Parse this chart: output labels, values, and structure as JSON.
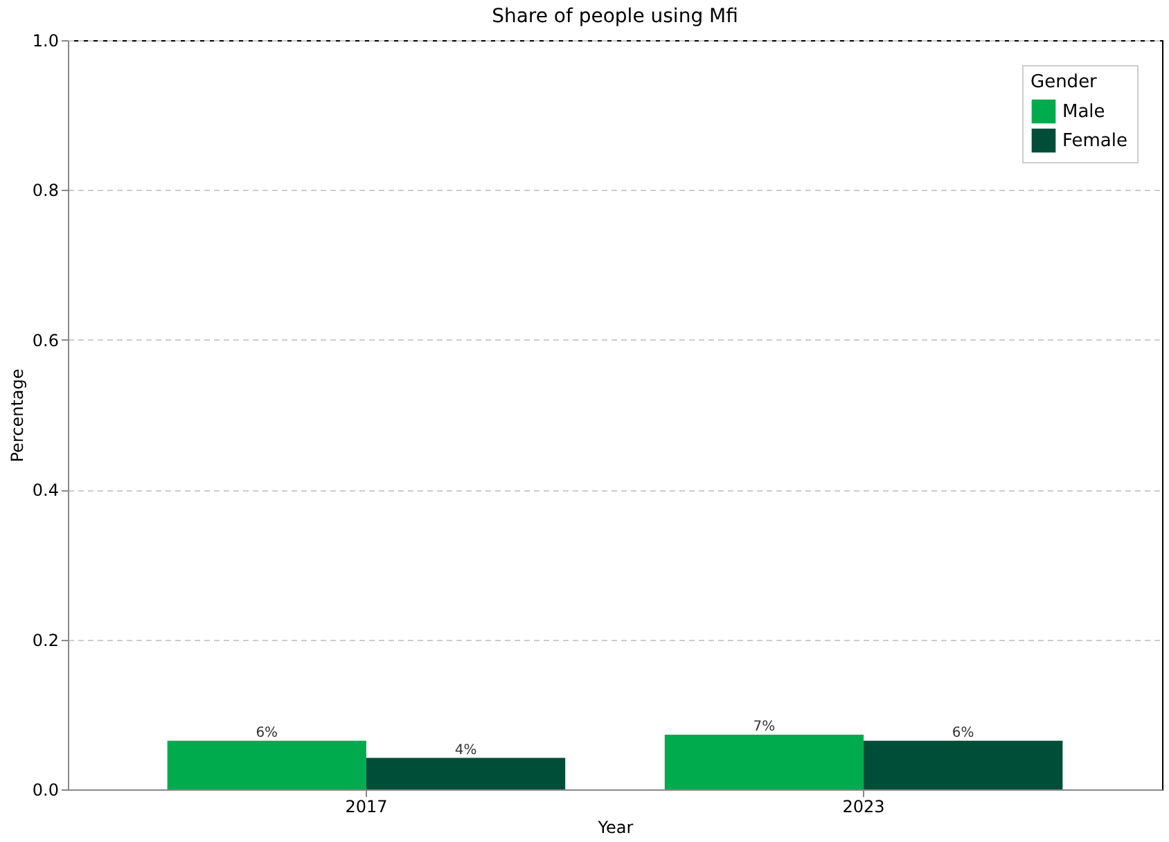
{
  "chart_data": {
    "type": "bar",
    "title": "Share of people using Mfi",
    "xlabel": "Year",
    "ylabel": "Percentage",
    "legend_title": "Gender",
    "categories": [
      "2017",
      "2023"
    ],
    "series": [
      {
        "name": "Male",
        "color": "#00ab4e",
        "values": [
          0.065,
          0.073
        ],
        "value_labels": [
          "6%",
          "7%"
        ]
      },
      {
        "name": "Female",
        "color": "#004d38",
        "values": [
          0.042,
          0.065
        ],
        "value_labels": [
          "4%",
          "6%"
        ]
      }
    ],
    "ylim": [
      0,
      1
    ],
    "yticks": [
      {
        "value": 0,
        "label": "0.0"
      },
      {
        "value": 0.2,
        "label": "0.2"
      },
      {
        "value": 0.4,
        "label": "0.4"
      },
      {
        "value": 0.6,
        "label": "0.6"
      },
      {
        "value": 0.8,
        "label": "0.8"
      },
      {
        "value": 1,
        "label": "1.0"
      }
    ],
    "grid": "y",
    "legend": "top right"
  }
}
